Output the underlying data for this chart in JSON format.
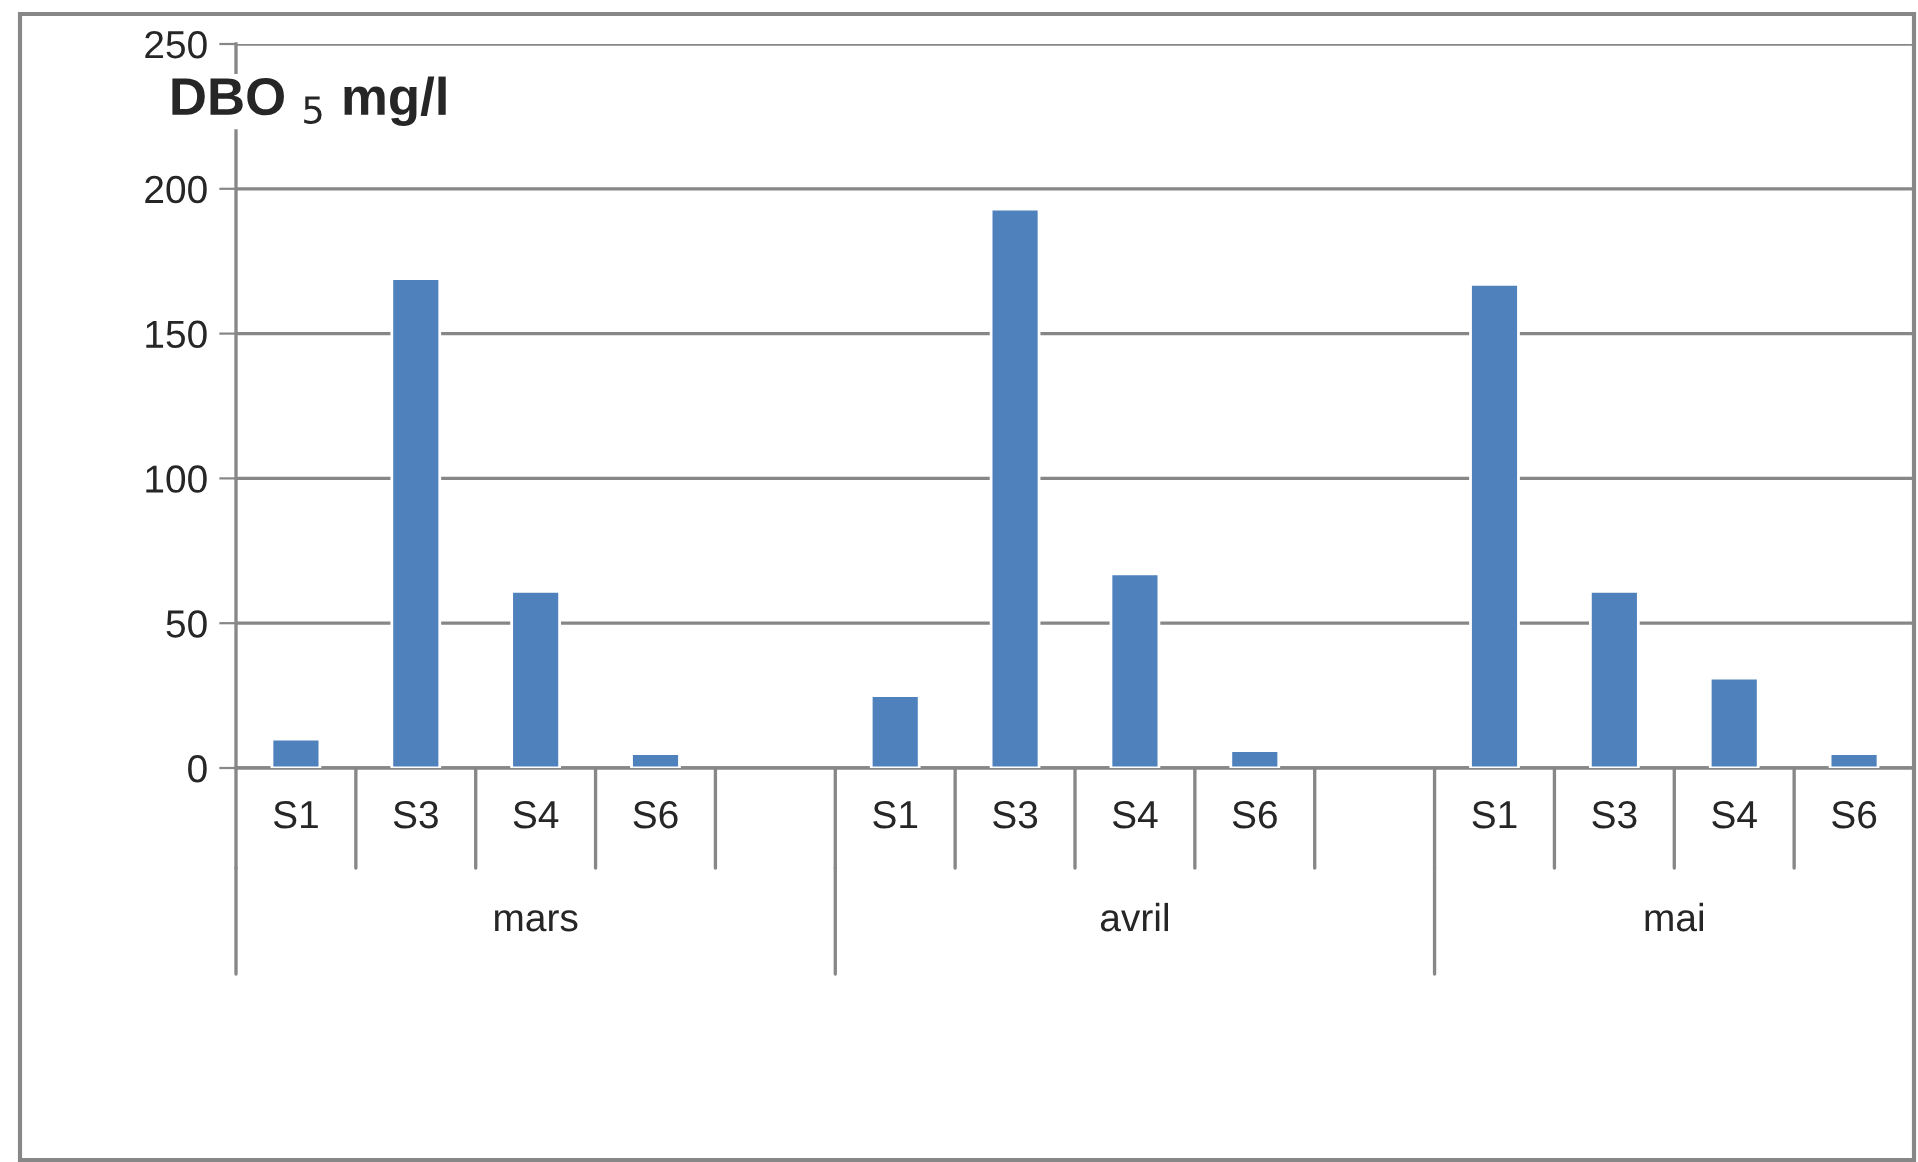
{
  "chart_data": {
    "type": "bar",
    "title": "DBO $_{5}$ mg/l",
    "categories": [
      "S1",
      "S3",
      "S4",
      "S6",
      null,
      "S1",
      "S3",
      "S4",
      "S6",
      null,
      "S1",
      "S3",
      "S4",
      "S6"
    ],
    "values": [
      10,
      169,
      61,
      5,
      null,
      25,
      193,
      67,
      6,
      null,
      167,
      61,
      31,
      5
    ],
    "color": "#4f81bd",
    "annotations": [
      "mars",
      "avril",
      "mai"
    ],
    "ylim": [
      0,
      250
    ],
    "yticks": [
      0,
      50,
      100,
      150,
      200,
      250
    ],
    "grid": "y"
  }
}
